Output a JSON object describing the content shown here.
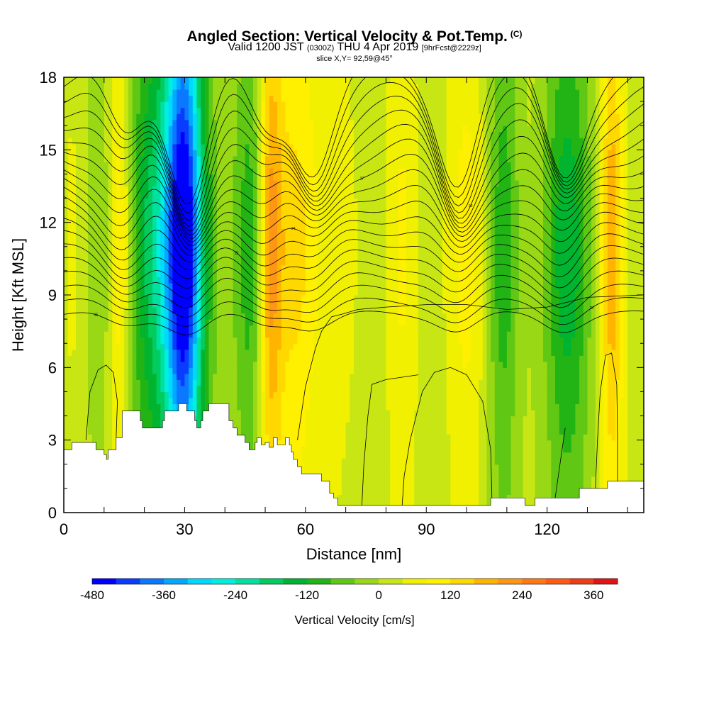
{
  "title": {
    "main": "Angled Section: Vertical Velocity & Pot.Temp.",
    "main_suffix": "(C)",
    "valid_prefix": "Valid 1200 JST",
    "valid_utc": "(0300Z)",
    "valid_date": "THU 4 Apr 2019",
    "forecast": "[9hrFcst@2229z]",
    "slice": "slice X,Y= 92,59@45°"
  },
  "chart_data": {
    "type": "heatmap",
    "xlabel": "Distance [nm]",
    "ylabel": "Height [Kft MSL]",
    "xlim": [
      0,
      144
    ],
    "ylim": [
      0,
      18
    ],
    "x_ticks": [
      0,
      30,
      60,
      90,
      120
    ],
    "y_ticks": [
      0,
      3,
      6,
      9,
      12,
      15,
      18
    ],
    "colorbar": {
      "title": "Vertical Velocity [cm/s]",
      "min": -480,
      "max": 400,
      "step": 40,
      "tick_labels": [
        -480,
        -360,
        -240,
        -120,
        0,
        120,
        240,
        360
      ],
      "colors": [
        "#0000ff",
        "#0a3cff",
        "#0a78ff",
        "#00a8ff",
        "#00d8ff",
        "#00f0e0",
        "#00e0a0",
        "#00cc60",
        "#00b430",
        "#22b414",
        "#60c814",
        "#98d814",
        "#c8e614",
        "#f0f000",
        "#fff000",
        "#ffd800",
        "#ffb400",
        "#ff9614",
        "#ff7814",
        "#ff5a14",
        "#f03c14",
        "#e01414",
        "#c8002a",
        "#a00050",
        "#800064",
        "#580080"
      ]
    },
    "velocity_columns": [
      {
        "x": 3,
        "width": 4,
        "value": 60
      },
      {
        "x": 8,
        "width": 7,
        "value": -60
      },
      {
        "x": 14,
        "width": 3,
        "value": 140
      },
      {
        "x": 19,
        "width": 5,
        "value": -80
      },
      {
        "x": 27,
        "width": 7,
        "value": -260
      },
      {
        "x": 30,
        "width": 4,
        "value": -350
      },
      {
        "x": 36,
        "width": 4,
        "value": -40
      },
      {
        "x": 47,
        "width": 5,
        "value": -140
      },
      {
        "x": 51,
        "width": 3,
        "value": 220
      },
      {
        "x": 57,
        "width": 6,
        "value": 120
      },
      {
        "x": 68,
        "width": 6,
        "value": 40
      },
      {
        "x": 84,
        "width": 4,
        "value": 70
      },
      {
        "x": 100,
        "width": 5,
        "value": 80
      },
      {
        "x": 109,
        "width": 4,
        "value": -130
      },
      {
        "x": 125,
        "width": 6,
        "value": -170
      },
      {
        "x": 136,
        "width": 3,
        "value": 180
      }
    ],
    "theta_levels": [
      15,
      16,
      17,
      18,
      19,
      20,
      21,
      22,
      23,
      24,
      25,
      26,
      27,
      28,
      29,
      30,
      31,
      32,
      33,
      34
    ],
    "theta_labels": [
      "15",
      "18",
      "21",
      "24",
      "27",
      "30",
      "33"
    ],
    "terrain_kft": [
      [
        0,
        2.6
      ],
      [
        2,
        2.9
      ],
      [
        5,
        2.9
      ],
      [
        7,
        2.9
      ],
      [
        8,
        2.6
      ],
      [
        9,
        2.6
      ],
      [
        10,
        2.4
      ],
      [
        10.6,
        2.2
      ],
      [
        11,
        2.6
      ],
      [
        12,
        2.6
      ],
      [
        13,
        3.1
      ],
      [
        14,
        3.1
      ],
      [
        14.5,
        4.2
      ],
      [
        17,
        4.2
      ],
      [
        19,
        3.8
      ],
      [
        19.5,
        3.5
      ],
      [
        24,
        3.5
      ],
      [
        24.5,
        3.8
      ],
      [
        25,
        4.2
      ],
      [
        28,
        4.2
      ],
      [
        28.5,
        4.5
      ],
      [
        30,
        4.5
      ],
      [
        30.5,
        4.2
      ],
      [
        32,
        4.2
      ],
      [
        32.5,
        3.8
      ],
      [
        33,
        3.5
      ],
      [
        34,
        3.8
      ],
      [
        34.5,
        4.2
      ],
      [
        36,
        4.5
      ],
      [
        40,
        4.5
      ],
      [
        41,
        3.8
      ],
      [
        42,
        3.5
      ],
      [
        43,
        3.2
      ],
      [
        45,
        2.9
      ],
      [
        46,
        2.6
      ],
      [
        47,
        2.6
      ],
      [
        47.5,
        2.9
      ],
      [
        48,
        3.1
      ],
      [
        49,
        2.8
      ],
      [
        50,
        2.9
      ],
      [
        51,
        2.7
      ],
      [
        52,
        3.1
      ],
      [
        53,
        2.8
      ],
      [
        55,
        3.1
      ],
      [
        56,
        2.8
      ],
      [
        56.5,
        2.5
      ],
      [
        57,
        2.2
      ],
      [
        58,
        1.9
      ],
      [
        59,
        1.6
      ],
      [
        63,
        1.6
      ],
      [
        64,
        1.3
      ],
      [
        66,
        0.8
      ],
      [
        67,
        0.6
      ],
      [
        68,
        0.3
      ],
      [
        71,
        0.3
      ],
      [
        72,
        0.3
      ],
      [
        90,
        0.3
      ],
      [
        105,
        0.3
      ],
      [
        106,
        0.6
      ],
      [
        114,
        0.6
      ],
      [
        114.5,
        0.3
      ],
      [
        116,
        0.3
      ],
      [
        117,
        0.6
      ],
      [
        124,
        0.6
      ],
      [
        125,
        0.6
      ],
      [
        127,
        0.6
      ],
      [
        128,
        1.0
      ],
      [
        134,
        1.0
      ],
      [
        135,
        1.3
      ],
      [
        144,
        1.3
      ]
    ]
  }
}
